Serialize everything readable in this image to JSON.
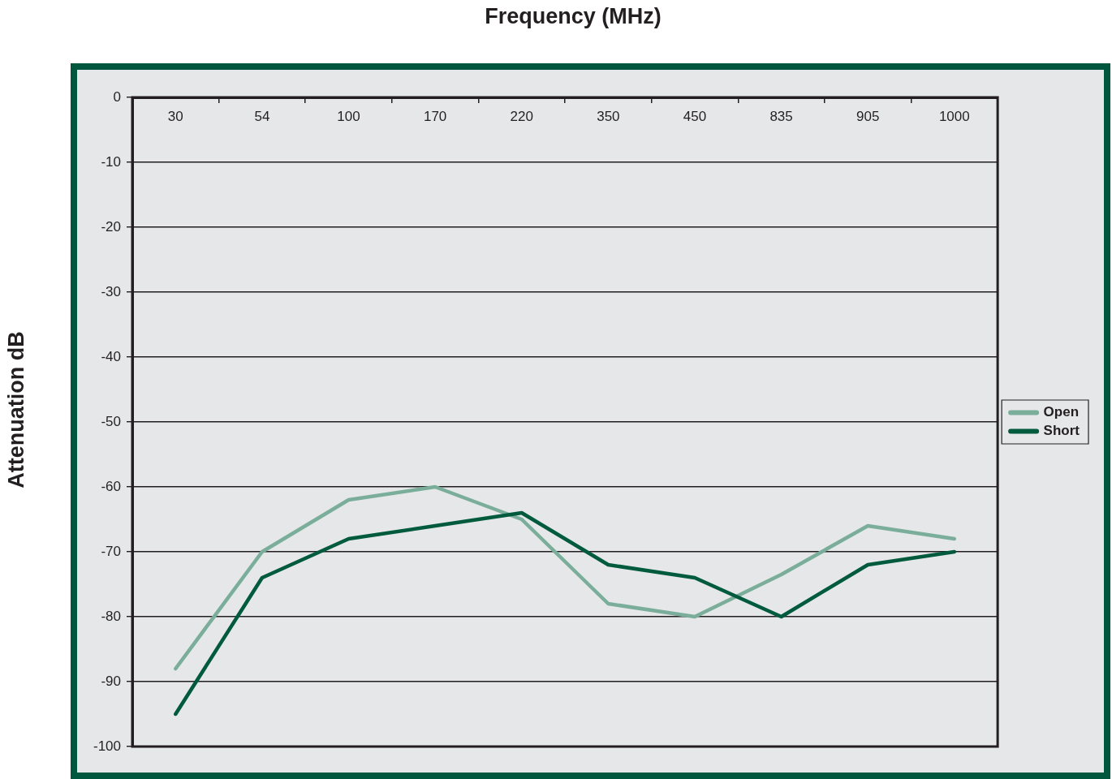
{
  "chart_data": {
    "type": "line",
    "xlabel": "Frequency (MHz)",
    "ylabel": "Attenuation dB",
    "categories": [
      "30",
      "54",
      "100",
      "170",
      "220",
      "350",
      "450",
      "835",
      "905",
      "1000"
    ],
    "series": [
      {
        "name": "Open",
        "color": "#7aae9b",
        "values": [
          -88,
          -70,
          -62,
          -60,
          -65,
          -78,
          -80,
          -73.5,
          -66,
          -68
        ]
      },
      {
        "name": "Short",
        "color": "#005a3c",
        "values": [
          -95,
          -74,
          -68,
          -66,
          -64,
          -72,
          -74,
          -80,
          -72,
          -70
        ]
      }
    ],
    "ylim": [
      -100,
      0
    ],
    "yticks": [
      -100,
      -90,
      -80,
      -70,
      -60,
      -50,
      -40,
      -30,
      -20,
      -10,
      0
    ],
    "grid": "y",
    "legend": "right",
    "marker": "none"
  }
}
